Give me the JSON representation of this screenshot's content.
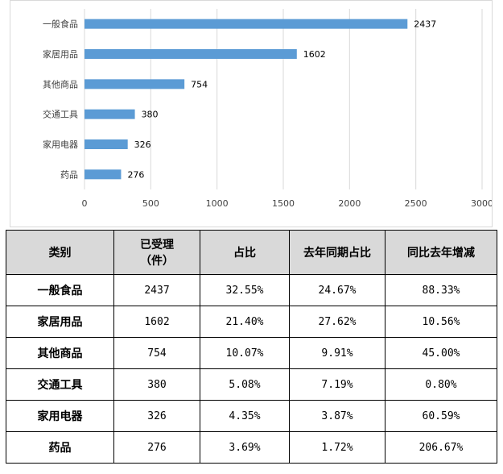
{
  "chart_data": {
    "type": "bar",
    "orientation": "horizontal",
    "categories": [
      "一般食品",
      "家居用品",
      "其他商品",
      "交通工具",
      "家用电器",
      "药品"
    ],
    "values": [
      2437,
      1602,
      754,
      380,
      326,
      276
    ],
    "xlim": [
      0,
      3000
    ],
    "xticks": [
      "0",
      "500",
      "1000",
      "1500",
      "2000",
      "2500",
      "3000"
    ],
    "grid": true,
    "bar_color": "#5b9bd5"
  },
  "table": {
    "headers": [
      "类别",
      "已受理（件）",
      "占比",
      "去年同期占比",
      "同比去年增减"
    ],
    "header_lines": [
      [
        "类别"
      ],
      [
        "已受理",
        "（件）"
      ],
      [
        "占比"
      ],
      [
        "去年同期占比"
      ],
      [
        "同比去年增减"
      ]
    ],
    "rows": [
      [
        "一般食品",
        "2437",
        "32.55%",
        "24.67%",
        "88.33%"
      ],
      [
        "家居用品",
        "1602",
        "21.40%",
        "27.62%",
        "10.56%"
      ],
      [
        "其他商品",
        "754",
        "10.07%",
        "9.91%",
        "45.00%"
      ],
      [
        "交通工具",
        "380",
        "5.08%",
        "7.19%",
        "0.80%"
      ],
      [
        "家用电器",
        "326",
        "4.35%",
        "3.87%",
        "60.59%"
      ],
      [
        "药品",
        "276",
        "3.69%",
        "1.72%",
        "206.67%"
      ]
    ]
  }
}
